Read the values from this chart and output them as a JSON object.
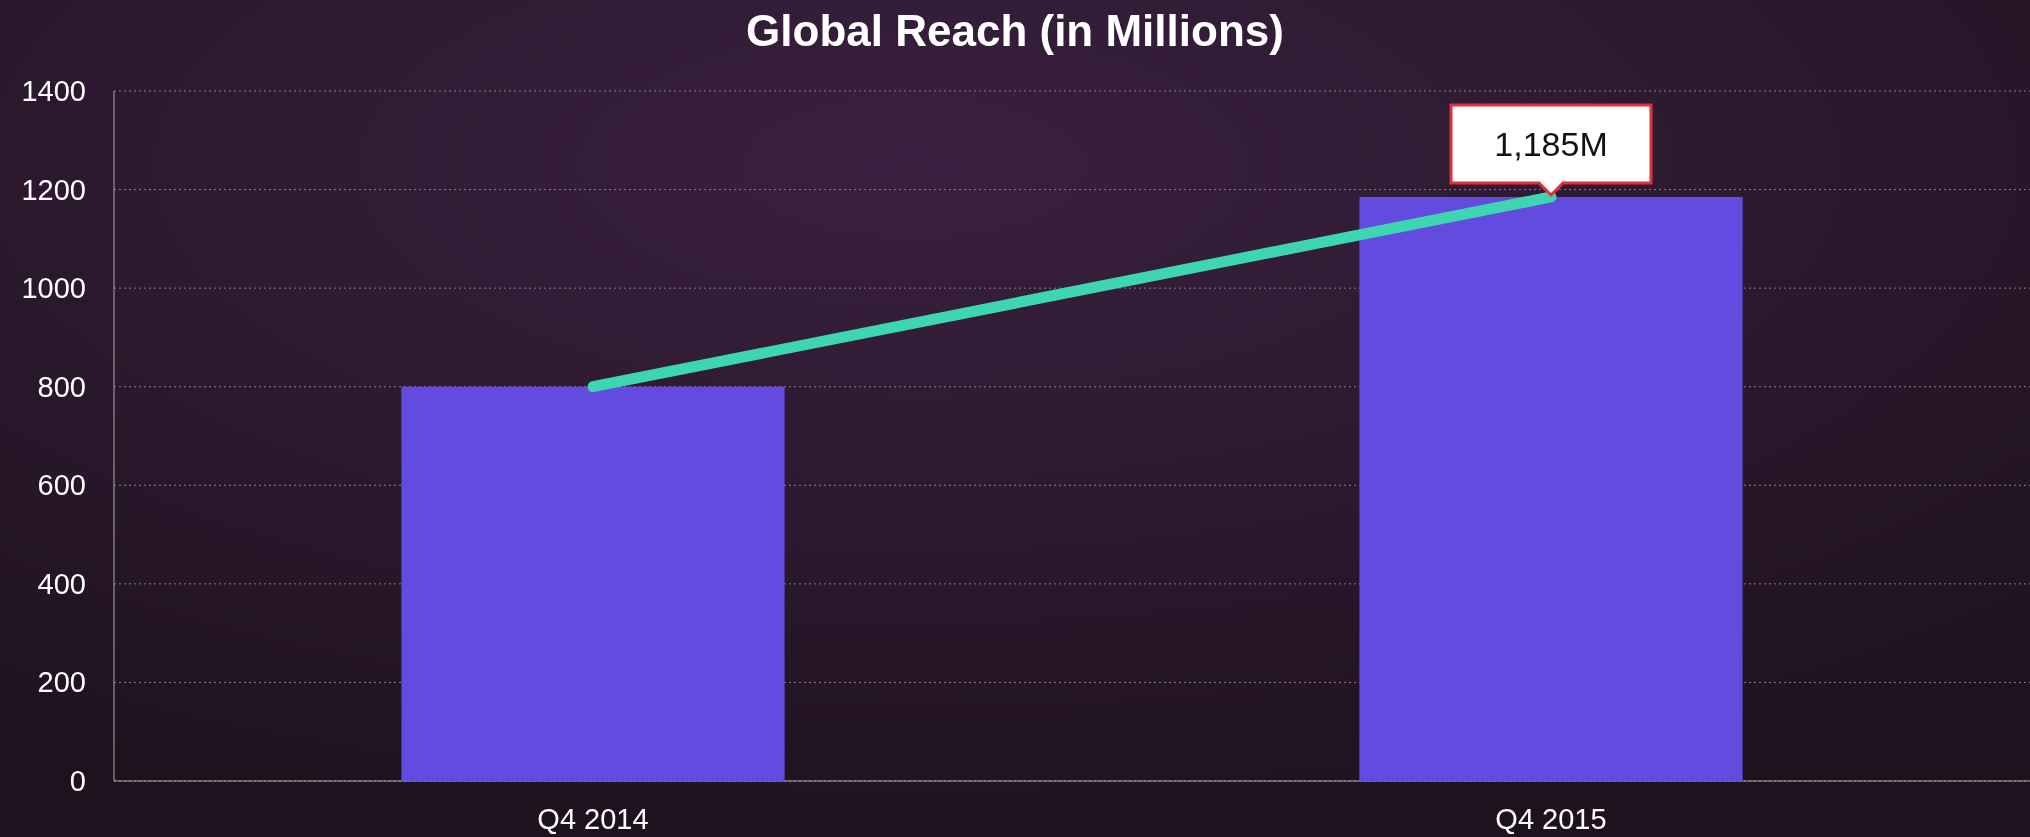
{
  "chart_data": {
    "type": "bar",
    "title": "Global Reach (in Millions)",
    "categories": [
      "Q4 2014",
      "Q4 2015"
    ],
    "series": [
      {
        "color": "#634bdf",
        "values": [
          800,
          1185
        ]
      },
      {
        "type": "line",
        "color": "#3dd6b0",
        "values": [
          800,
          1185
        ]
      }
    ],
    "annotations": [
      {
        "text": "1,185M",
        "x": "Q4 2015",
        "y": 1185
      }
    ],
    "ylim": [
      0,
      1400
    ],
    "yticks": [
      0,
      200,
      400,
      600,
      800,
      1000,
      1200,
      1400
    ],
    "grid": "y",
    "marker": "none",
    "line_style": "solid"
  }
}
